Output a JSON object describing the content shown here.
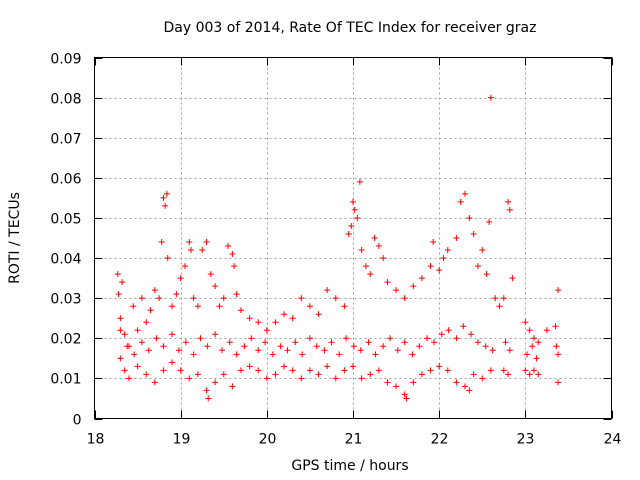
{
  "chart_data": {
    "type": "scatter",
    "title": "Day 003 of 2014, Rate Of TEC Index for receiver graz",
    "xlabel": "GPS time / hours",
    "ylabel": "ROTI / TECUs",
    "xlim": [
      18,
      24
    ],
    "ylim": [
      0,
      0.09
    ],
    "x_ticks": [
      "18",
      "19",
      "20",
      "21",
      "22",
      "23",
      "24"
    ],
    "y_ticks": [
      "0",
      "0.01",
      "0.02",
      "0.03",
      "0.04",
      "0.05",
      "0.06",
      "0.07",
      "0.08",
      "0.09"
    ],
    "grid": true,
    "marker": "+",
    "color": "#ff0000",
    "series": [
      {
        "name": "ROTI",
        "points": [
          [
            18.27,
            0.036
          ],
          [
            18.28,
            0.031
          ],
          [
            18.3,
            0.025
          ],
          [
            18.32,
            0.034
          ],
          [
            18.35,
            0.021
          ],
          [
            18.4,
            0.018
          ],
          [
            18.45,
            0.028
          ],
          [
            18.5,
            0.022
          ],
          [
            18.55,
            0.03
          ],
          [
            18.6,
            0.024
          ],
          [
            18.65,
            0.027
          ],
          [
            18.7,
            0.032
          ],
          [
            18.75,
            0.03
          ],
          [
            18.8,
            0.055
          ],
          [
            18.82,
            0.053
          ],
          [
            18.84,
            0.056
          ],
          [
            18.78,
            0.044
          ],
          [
            18.85,
            0.04
          ],
          [
            18.9,
            0.028
          ],
          [
            18.95,
            0.031
          ],
          [
            19.0,
            0.035
          ],
          [
            19.05,
            0.038
          ],
          [
            19.1,
            0.044
          ],
          [
            19.12,
            0.042
          ],
          [
            19.15,
            0.03
          ],
          [
            19.2,
            0.028
          ],
          [
            19.25,
            0.042
          ],
          [
            19.3,
            0.044
          ],
          [
            19.35,
            0.036
          ],
          [
            19.4,
            0.033
          ],
          [
            19.45,
            0.028
          ],
          [
            19.5,
            0.03
          ],
          [
            19.55,
            0.043
          ],
          [
            19.6,
            0.041
          ],
          [
            19.62,
            0.038
          ],
          [
            19.65,
            0.031
          ],
          [
            19.7,
            0.027
          ],
          [
            19.8,
            0.025
          ],
          [
            19.9,
            0.024
          ],
          [
            20.0,
            0.022
          ],
          [
            20.1,
            0.024
          ],
          [
            20.2,
            0.026
          ],
          [
            20.3,
            0.025
          ],
          [
            20.4,
            0.03
          ],
          [
            20.5,
            0.028
          ],
          [
            20.6,
            0.026
          ],
          [
            20.7,
            0.032
          ],
          [
            20.8,
            0.03
          ],
          [
            20.9,
            0.028
          ],
          [
            20.95,
            0.046
          ],
          [
            20.98,
            0.048
          ],
          [
            21.0,
            0.054
          ],
          [
            21.02,
            0.052
          ],
          [
            21.05,
            0.05
          ],
          [
            21.08,
            0.059
          ],
          [
            21.1,
            0.042
          ],
          [
            21.15,
            0.038
          ],
          [
            21.2,
            0.036
          ],
          [
            21.25,
            0.045
          ],
          [
            21.3,
            0.043
          ],
          [
            21.35,
            0.04
          ],
          [
            21.4,
            0.034
          ],
          [
            21.5,
            0.032
          ],
          [
            21.6,
            0.03
          ],
          [
            21.7,
            0.033
          ],
          [
            21.8,
            0.035
          ],
          [
            21.9,
            0.038
          ],
          [
            21.93,
            0.044
          ],
          [
            22.0,
            0.037
          ],
          [
            22.05,
            0.04
          ],
          [
            22.1,
            0.042
          ],
          [
            22.2,
            0.045
          ],
          [
            22.25,
            0.054
          ],
          [
            22.3,
            0.056
          ],
          [
            22.35,
            0.05
          ],
          [
            22.4,
            0.046
          ],
          [
            22.45,
            0.038
          ],
          [
            22.5,
            0.042
          ],
          [
            22.55,
            0.036
          ],
          [
            22.58,
            0.049
          ],
          [
            22.6,
            0.08
          ],
          [
            22.65,
            0.03
          ],
          [
            22.7,
            0.028
          ],
          [
            22.75,
            0.03
          ],
          [
            22.8,
            0.054
          ],
          [
            22.82,
            0.052
          ],
          [
            22.85,
            0.035
          ],
          [
            23.0,
            0.024
          ],
          [
            23.05,
            0.022
          ],
          [
            23.1,
            0.02
          ],
          [
            23.15,
            0.019
          ],
          [
            23.25,
            0.022
          ],
          [
            23.35,
            0.023
          ],
          [
            23.38,
            0.032
          ],
          [
            18.3,
            0.015
          ],
          [
            18.35,
            0.012
          ],
          [
            18.4,
            0.01
          ],
          [
            18.5,
            0.013
          ],
          [
            18.6,
            0.011
          ],
          [
            18.7,
            0.009
          ],
          [
            18.8,
            0.012
          ],
          [
            18.9,
            0.014
          ],
          [
            19.0,
            0.012
          ],
          [
            19.1,
            0.01
          ],
          [
            19.2,
            0.011
          ],
          [
            19.3,
            0.007
          ],
          [
            19.32,
            0.005
          ],
          [
            19.4,
            0.009
          ],
          [
            19.5,
            0.011
          ],
          [
            19.6,
            0.008
          ],
          [
            19.7,
            0.012
          ],
          [
            19.8,
            0.013
          ],
          [
            19.9,
            0.012
          ],
          [
            20.0,
            0.01
          ],
          [
            20.1,
            0.011
          ],
          [
            20.2,
            0.013
          ],
          [
            20.3,
            0.012
          ],
          [
            20.4,
            0.01
          ],
          [
            20.5,
            0.012
          ],
          [
            20.6,
            0.011
          ],
          [
            20.7,
            0.013
          ],
          [
            20.8,
            0.01
          ],
          [
            20.9,
            0.012
          ],
          [
            21.0,
            0.013
          ],
          [
            21.1,
            0.01
          ],
          [
            21.2,
            0.011
          ],
          [
            21.3,
            0.012
          ],
          [
            21.4,
            0.009
          ],
          [
            21.5,
            0.008
          ],
          [
            21.6,
            0.006
          ],
          [
            21.62,
            0.005
          ],
          [
            21.7,
            0.009
          ],
          [
            21.8,
            0.011
          ],
          [
            21.9,
            0.012
          ],
          [
            22.0,
            0.013
          ],
          [
            22.1,
            0.012
          ],
          [
            22.2,
            0.009
          ],
          [
            22.3,
            0.008
          ],
          [
            22.35,
            0.007
          ],
          [
            22.4,
            0.011
          ],
          [
            22.5,
            0.01
          ],
          [
            22.6,
            0.012
          ],
          [
            22.75,
            0.012
          ],
          [
            22.8,
            0.011
          ],
          [
            23.0,
            0.012
          ],
          [
            23.05,
            0.011
          ],
          [
            23.1,
            0.012
          ],
          [
            23.15,
            0.011
          ],
          [
            23.38,
            0.009
          ],
          [
            18.3,
            0.022
          ],
          [
            18.38,
            0.018
          ],
          [
            18.46,
            0.016
          ],
          [
            18.55,
            0.019
          ],
          [
            18.63,
            0.017
          ],
          [
            18.72,
            0.02
          ],
          [
            18.8,
            0.018
          ],
          [
            18.9,
            0.021
          ],
          [
            18.98,
            0.017
          ],
          [
            19.06,
            0.019
          ],
          [
            19.15,
            0.016
          ],
          [
            19.23,
            0.02
          ],
          [
            19.31,
            0.018
          ],
          [
            19.4,
            0.021
          ],
          [
            19.48,
            0.017
          ],
          [
            19.57,
            0.019
          ],
          [
            19.65,
            0.016
          ],
          [
            19.74,
            0.018
          ],
          [
            19.82,
            0.02
          ],
          [
            19.9,
            0.017
          ],
          [
            19.98,
            0.019
          ],
          [
            20.07,
            0.016
          ],
          [
            20.16,
            0.018
          ],
          [
            20.24,
            0.017
          ],
          [
            20.33,
            0.019
          ],
          [
            20.41,
            0.016
          ],
          [
            20.5,
            0.02
          ],
          [
            20.58,
            0.018
          ],
          [
            20.67,
            0.017
          ],
          [
            20.75,
            0.019
          ],
          [
            20.84,
            0.016
          ],
          [
            20.92,
            0.02
          ],
          [
            21.01,
            0.018
          ],
          [
            21.09,
            0.017
          ],
          [
            21.18,
            0.019
          ],
          [
            21.26,
            0.016
          ],
          [
            21.35,
            0.018
          ],
          [
            21.43,
            0.02
          ],
          [
            21.52,
            0.017
          ],
          [
            21.6,
            0.019
          ],
          [
            21.69,
            0.016
          ],
          [
            21.77,
            0.018
          ],
          [
            21.86,
            0.02
          ],
          [
            21.94,
            0.019
          ],
          [
            22.03,
            0.021
          ],
          [
            22.11,
            0.022
          ],
          [
            22.2,
            0.02
          ],
          [
            22.28,
            0.023
          ],
          [
            22.37,
            0.021
          ],
          [
            22.45,
            0.019
          ],
          [
            22.54,
            0.018
          ],
          [
            22.62,
            0.017
          ],
          [
            22.77,
            0.019
          ],
          [
            22.82,
            0.017
          ],
          [
            23.02,
            0.016
          ],
          [
            23.08,
            0.018
          ],
          [
            23.13,
            0.015
          ],
          [
            23.36,
            0.018
          ],
          [
            23.38,
            0.016
          ]
        ]
      }
    ]
  }
}
